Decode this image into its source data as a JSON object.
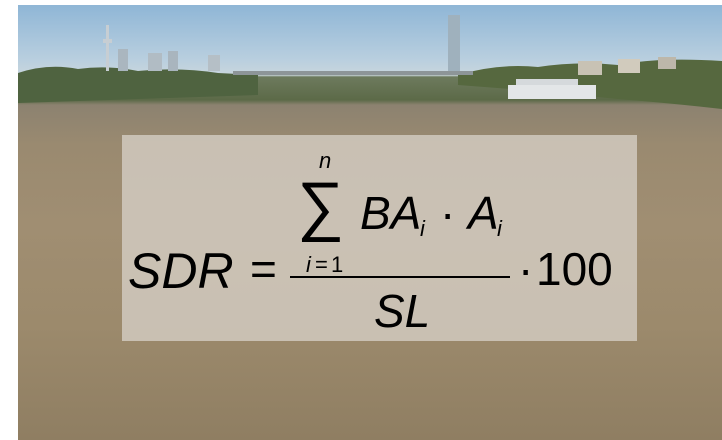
{
  "formula": {
    "lhs": "SDR",
    "equals": "=",
    "sum_upper": "n",
    "sum_symbol": "∑",
    "sum_lower_var": "i",
    "sum_lower_eq": "=",
    "sum_lower_val": "1",
    "term_ba": "BA",
    "term_ba_sub": "i",
    "dot": "·",
    "term_a": "A",
    "term_a_sub": "i",
    "denominator": "SL",
    "times_dot": "·",
    "multiplier": "100"
  }
}
